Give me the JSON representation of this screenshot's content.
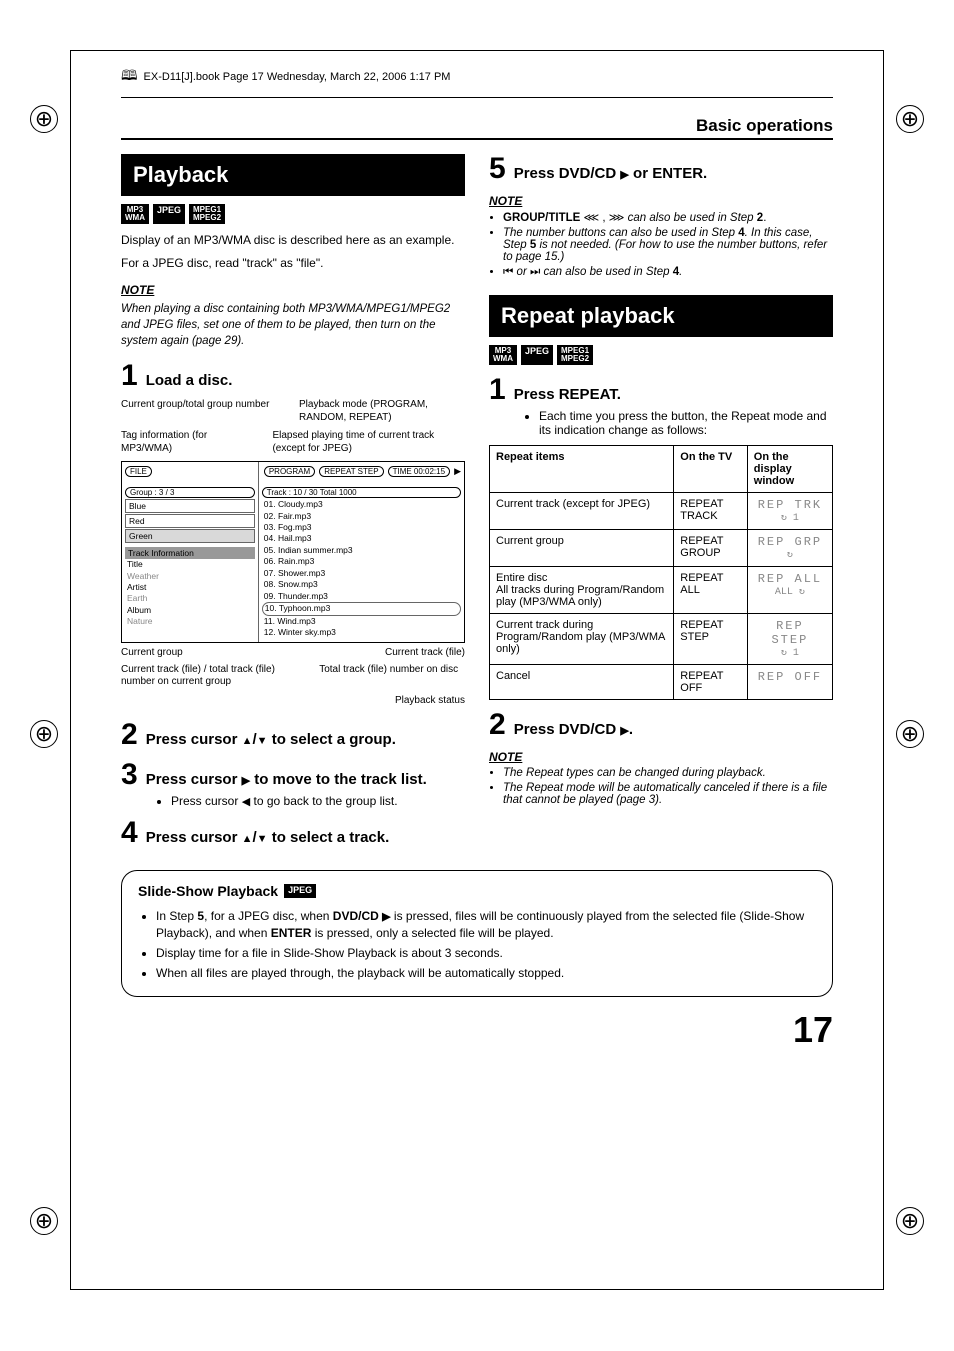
{
  "header": {
    "text": "EX-D11[J].book  Page 17  Wednesday, March 22, 2006  1:17 PM"
  },
  "basic_ops": "Basic operations",
  "playback": {
    "title": "Playback",
    "badges": [
      "MP3\nWMA",
      "JPEG",
      "MPEG1\nMPEG2"
    ],
    "intro1": "Display of an MP3/WMA disc is described here as an example.",
    "intro2": "For a JPEG disc, read \"track\" as \"file\".",
    "note_hd": "NOTE",
    "note_body": "When playing a disc containing both MP3/WMA/MPEG1/MPEG2 and JPEG files, set one of them to be played, then turn on the system again (page 29).",
    "step1": "Load a disc.",
    "diagram": {
      "label_tl": "Current group/total group number",
      "label_tr": "Playback mode (PROGRAM, RANDOM, REPEAT)",
      "label_ml": "Tag information (for MP3/WMA)",
      "label_mr": "Elapsed playing time of current track (except for JPEG)",
      "file": "FILE",
      "mode_pills": [
        "PROGRAM",
        "REPEAT STEP",
        "TIME 00:02:15"
      ],
      "group_line": "Group  :  3 / 3",
      "groups": [
        "Blue",
        "Red",
        "Green"
      ],
      "track_hd": "Track  :  10  /  30   Total  1000",
      "tracks": [
        "01. Cloudy.mp3",
        "02. Fair.mp3",
        "03. Fog.mp3",
        "04. Hail.mp3",
        "05. Indian summer.mp3",
        "06. Rain.mp3",
        "07. Shower.mp3",
        "08. Snow.mp3",
        "09. Thunder.mp3",
        "10. Typhoon.mp3",
        "11. Wind.mp3",
        "12. Winter sky.mp3"
      ],
      "info_hd": "Track  Information",
      "info_rows": [
        "Title",
        "Weather",
        "Artist",
        "Earth",
        "Album",
        "Nature"
      ],
      "under_l": "Current group",
      "under_r": "Current track (file)",
      "under2_l": "Current track (file) / total track (file) number on current group",
      "under2_r": "Total track (file) number on disc",
      "status": "Playback status"
    },
    "step2": "Press cursor ▲/▼ to select a group.",
    "step3": "Press cursor ▶ to move to the track list.",
    "step3_sub": "Press cursor ◀ to go back to the group list.",
    "step4": "Press cursor ▲/▼ to select a track.",
    "step5": "Press DVD/CD ▶ or ENTER.",
    "step5_note_hd": "NOTE",
    "step5_bullets": [
      "GROUP/TITLE ⋘ , ⋙ can also be used in Step 2.",
      "The number buttons can also be used in Step 4. In this case, Step 5 is not needed. (For how to use the number buttons, refer to page 15.)",
      "⏮ or ⏭ can also be used in Step 4."
    ]
  },
  "repeat": {
    "title": "Repeat playback",
    "badges": [
      "MP3\nWMA",
      "JPEG",
      "MPEG1\nMPEG2"
    ],
    "step1": "Press REPEAT.",
    "step1_sub": "Each time you press the button, the Repeat mode and its indication change as follows:",
    "table": {
      "headers": [
        "Repeat items",
        "On the TV",
        "On the display window"
      ],
      "rows": [
        {
          "c1": "Current track (except for JPEG)",
          "c2": "REPEAT TRACK",
          "lcd": "REP  TRK",
          "lcdsub": "↻ 1"
        },
        {
          "c1": "Current group",
          "c2": "REPEAT GROUP",
          "lcd": "REP  GRP",
          "lcdsub": "↻"
        },
        {
          "c1": "Entire disc\nAll tracks during Program/Random play (MP3/WMA only)",
          "c2": "REPEAT ALL",
          "lcd": "REP  ALL",
          "lcdsub": "ALL ↻"
        },
        {
          "c1": "Current track during Program/Random play (MP3/WMA only)",
          "c2": "REPEAT STEP",
          "lcd": "REP  STEP",
          "lcdsub": "↻ 1"
        },
        {
          "c1": "Cancel",
          "c2": "REPEAT OFF",
          "lcd": "REP  OFF",
          "lcdsub": ""
        }
      ]
    },
    "step2": "Press DVD/CD ▶.",
    "note_hd": "NOTE",
    "note_bullets": [
      "The Repeat types can be changed during playback.",
      "The Repeat mode will be automatically canceled if there is a file that cannot be played (page 3)."
    ]
  },
  "slideshow": {
    "title": "Slide-Show Playback",
    "badge": "JPEG",
    "bullets": [
      "In Step 5, for a JPEG disc, when DVD/CD ▶ is pressed, files will be continuously played from the selected file (Slide-Show Playback), and when ENTER is pressed, only a selected file will be played.",
      "Display time for a file in Slide-Show Playback is about 3 seconds.",
      "When all files are played through, the playback will be automatically stopped."
    ]
  },
  "pagenum": "17",
  "colors": {
    "black": "#000000",
    "white": "#ffffff",
    "grey_hl": "#d9d9d9",
    "lcd": "#888888"
  }
}
